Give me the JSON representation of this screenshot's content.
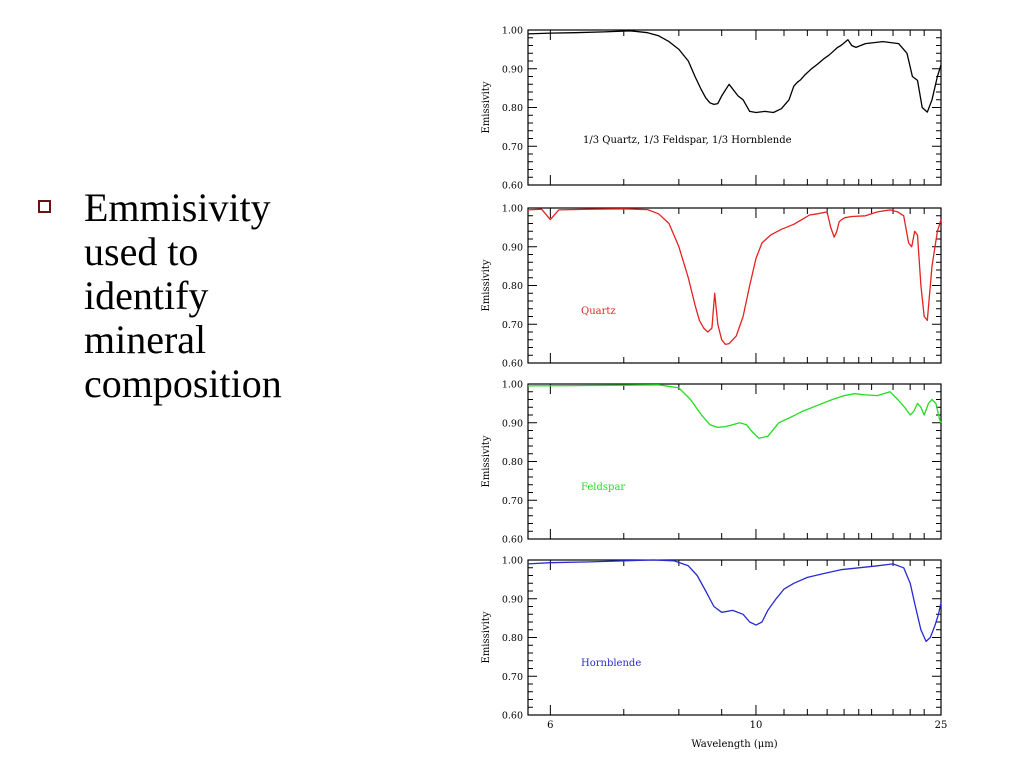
{
  "slide": {
    "bullet": {
      "marker": "hollow-square",
      "lines": [
        "Emmisivity",
        "used to",
        "identify",
        "mineral",
        "composition"
      ]
    }
  },
  "chart_data": [
    {
      "type": "line",
      "panel": "mixture",
      "annotation": "1/3 Quartz, 1/3 Feldspar, 1/3 Hornblende",
      "ylabel": "Emissivity",
      "xlabel": "",
      "color": "#000000",
      "xscale": "reciprocal",
      "xlim": [
        5.75,
        25
      ],
      "ylim": [
        0.6,
        1.0
      ],
      "yticks": [
        "0.60",
        "0.70",
        "0.80",
        "0.90",
        "1.00"
      ],
      "series": [
        {
          "x": [
            5.75,
            6.0,
            6.3,
            6.7,
            7.1,
            7.4,
            7.6,
            7.8,
            8.0,
            8.2,
            8.35,
            8.5,
            8.6,
            8.7,
            8.8,
            8.9,
            9.0,
            9.2,
            9.45,
            9.6,
            9.8,
            10.0,
            10.3,
            10.6,
            10.9,
            11.2,
            11.4,
            11.55,
            11.7,
            11.9,
            12.2,
            12.5,
            12.8,
            13.1,
            13.35,
            13.6,
            13.8,
            13.95,
            14.1,
            14.25,
            14.5,
            14.8,
            15.5,
            17.0,
            18.6,
            19.6,
            20.3,
            21.0,
            21.7,
            22.5,
            23.3,
            24.3,
            25.0
          ],
          "y": [
            0.99,
            0.992,
            0.993,
            0.995,
            0.998,
            0.993,
            0.985,
            0.97,
            0.95,
            0.92,
            0.88,
            0.845,
            0.825,
            0.812,
            0.808,
            0.81,
            0.83,
            0.86,
            0.83,
            0.82,
            0.79,
            0.787,
            0.79,
            0.787,
            0.797,
            0.82,
            0.855,
            0.865,
            0.872,
            0.885,
            0.9,
            0.912,
            0.925,
            0.935,
            0.945,
            0.955,
            0.96,
            0.965,
            0.97,
            0.975,
            0.96,
            0.955,
            0.965,
            0.97,
            0.965,
            0.94,
            0.88,
            0.87,
            0.8,
            0.788,
            0.82,
            0.88,
            0.91
          ]
        }
      ]
    },
    {
      "type": "line",
      "panel": "quartz",
      "annotation": "Quartz",
      "ylabel": "Emissivity",
      "xlabel": "",
      "color": "#e52222",
      "xscale": "reciprocal",
      "xlim": [
        5.75,
        25
      ],
      "ylim": [
        0.6,
        1.0
      ],
      "yticks": [
        "0.60",
        "0.70",
        "0.80",
        "0.90",
        "1.00"
      ],
      "series": [
        {
          "x": [
            5.75,
            5.9,
            6.0,
            6.1,
            6.5,
            7.0,
            7.4,
            7.6,
            7.8,
            8.0,
            8.2,
            8.35,
            8.45,
            8.55,
            8.65,
            8.75,
            8.82,
            8.9,
            9.0,
            9.1,
            9.2,
            9.4,
            9.6,
            9.8,
            10.0,
            10.2,
            10.5,
            10.9,
            11.4,
            11.8,
            12.1,
            12.5,
            13.0,
            13.2,
            13.4,
            13.55,
            13.7,
            13.85,
            14.05,
            14.5,
            15.5,
            16.5,
            17.7,
            18.5,
            19.2,
            19.8,
            20.2,
            20.6,
            21.0,
            21.5,
            22.0,
            22.5,
            23.3,
            24.3,
            25.0
          ],
          "y": [
            0.995,
            0.997,
            0.97,
            0.995,
            0.997,
            0.998,
            0.996,
            0.985,
            0.96,
            0.9,
            0.82,
            0.75,
            0.71,
            0.69,
            0.68,
            0.69,
            0.78,
            0.7,
            0.66,
            0.648,
            0.65,
            0.67,
            0.72,
            0.8,
            0.87,
            0.91,
            0.93,
            0.945,
            0.958,
            0.972,
            0.982,
            0.985,
            0.99,
            0.95,
            0.925,
            0.94,
            0.965,
            0.97,
            0.975,
            0.978,
            0.98,
            0.99,
            0.995,
            0.99,
            0.98,
            0.91,
            0.9,
            0.94,
            0.93,
            0.8,
            0.72,
            0.71,
            0.85,
            0.94,
            0.97
          ]
        }
      ]
    },
    {
      "type": "line",
      "panel": "feldspar",
      "annotation": "Feldspar",
      "ylabel": "Emissivity",
      "xlabel": "",
      "color": "#22dd22",
      "xscale": "reciprocal",
      "xlim": [
        5.75,
        25
      ],
      "ylim": [
        0.6,
        1.0
      ],
      "yticks": [
        "0.60",
        "0.70",
        "0.80",
        "0.90",
        "1.00"
      ],
      "series": [
        {
          "x": [
            5.75,
            6.3,
            7.0,
            7.6,
            8.0,
            8.25,
            8.5,
            8.7,
            8.9,
            9.1,
            9.3,
            9.5,
            9.7,
            9.9,
            10.1,
            10.4,
            10.8,
            11.3,
            11.8,
            12.5,
            13.3,
            14.0,
            14.7,
            15.5,
            16.5,
            17.7,
            18.5,
            19.3,
            20.0,
            20.5,
            21.0,
            21.5,
            22.0,
            22.7,
            23.3,
            24.0,
            24.7,
            25.0
          ],
          "y": [
            0.995,
            0.996,
            0.997,
            0.998,
            0.99,
            0.96,
            0.92,
            0.895,
            0.888,
            0.89,
            0.895,
            0.9,
            0.895,
            0.875,
            0.86,
            0.865,
            0.9,
            0.915,
            0.93,
            0.945,
            0.96,
            0.97,
            0.975,
            0.972,
            0.97,
            0.98,
            0.96,
            0.94,
            0.92,
            0.93,
            0.95,
            0.94,
            0.92,
            0.95,
            0.96,
            0.95,
            0.91,
            0.9
          ]
        }
      ]
    },
    {
      "type": "line",
      "panel": "hornblende",
      "annotation": "Hornblende",
      "ylabel": "Emissivity",
      "xlabel": "Wavelength (μm)",
      "color": "#2a2ad4",
      "xscale": "reciprocal",
      "xlim": [
        5.75,
        25
      ],
      "ylim": [
        0.6,
        1.0
      ],
      "xticks": [
        "6",
        "10",
        "25"
      ],
      "yticks": [
        "0.60",
        "0.70",
        "0.80",
        "0.90",
        "1.00"
      ],
      "series": [
        {
          "x": [
            5.75,
            6.0,
            6.5,
            7.0,
            7.5,
            7.9,
            8.2,
            8.4,
            8.6,
            8.8,
            9.0,
            9.3,
            9.6,
            9.8,
            10.0,
            10.2,
            10.4,
            10.7,
            11.0,
            11.4,
            12.0,
            12.8,
            13.8,
            15.0,
            16.5,
            18.0,
            19.2,
            20.0,
            20.7,
            21.5,
            22.3,
            23.0,
            23.8,
            24.5,
            25.0
          ],
          "y": [
            0.99,
            0.993,
            0.995,
            0.998,
            1.0,
            0.998,
            0.985,
            0.96,
            0.92,
            0.88,
            0.865,
            0.87,
            0.86,
            0.84,
            0.832,
            0.84,
            0.87,
            0.9,
            0.925,
            0.94,
            0.955,
            0.965,
            0.975,
            0.98,
            0.985,
            0.99,
            0.98,
            0.94,
            0.88,
            0.82,
            0.79,
            0.8,
            0.83,
            0.86,
            0.89
          ]
        }
      ]
    }
  ]
}
